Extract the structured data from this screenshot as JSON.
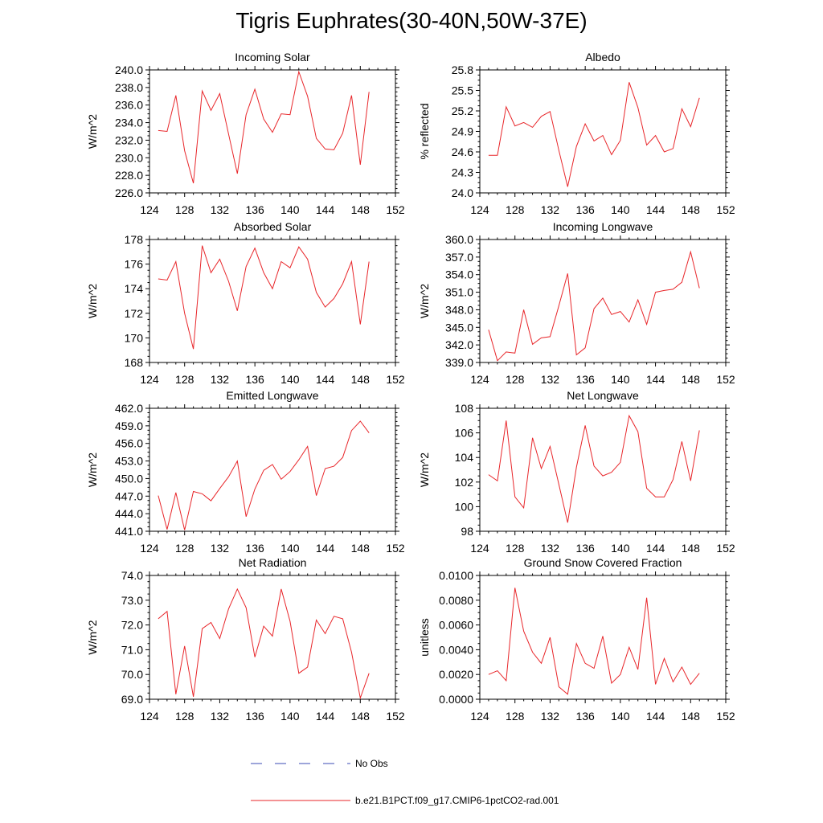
{
  "figure_title": "Tigris Euphrates(30-40N,50W-37E)",
  "legend": {
    "obs_label": "No Obs",
    "obs_color": "#3b4bb5",
    "model_label": "b.e21.B1PCT.f09_g17.CMIP6-1pctCO2-rad.001",
    "model_color": "#e8262a"
  },
  "chart_data": [
    {
      "type": "line",
      "title": "Incoming Solar",
      "ylabel": "W/m^2",
      "xlim": [
        124,
        152
      ],
      "ylim": [
        226.0,
        240.0
      ],
      "xticks": [
        "124",
        "128",
        "132",
        "136",
        "140",
        "144",
        "148",
        "152"
      ],
      "yticks": [
        "226.0",
        "228.0",
        "230.0",
        "232.0",
        "234.0",
        "236.0",
        "238.0",
        "240.0"
      ],
      "x": [
        125,
        126,
        127,
        128,
        129,
        130,
        131,
        132,
        133,
        134,
        135,
        136,
        137,
        138,
        139,
        140,
        141,
        142,
        143,
        144,
        145,
        146,
        147,
        148,
        149
      ],
      "series": [
        {
          "name": "b.e21.B1PCT.f09_g17.CMIP6-1pctCO2-rad.001",
          "values": [
            233.1,
            233.0,
            237.1,
            230.8,
            227.1,
            237.6,
            235.4,
            237.3,
            232.7,
            228.2,
            234.9,
            237.8,
            234.4,
            232.9,
            235.0,
            234.9,
            239.8,
            237.0,
            232.2,
            231.0,
            230.9,
            232.8,
            237.1,
            229.2,
            237.5
          ]
        }
      ]
    },
    {
      "type": "line",
      "title": "Albedo",
      "ylabel": "% reflected",
      "xlim": [
        124,
        152
      ],
      "ylim": [
        24.0,
        25.8
      ],
      "xticks": [
        "124",
        "128",
        "132",
        "136",
        "140",
        "144",
        "148",
        "152"
      ],
      "yticks": [
        "24.0",
        "24.3",
        "24.6",
        "24.9",
        "25.2",
        "25.5",
        "25.8"
      ],
      "x": [
        125,
        126,
        127,
        128,
        129,
        130,
        131,
        132,
        133,
        134,
        135,
        136,
        137,
        138,
        139,
        140,
        141,
        142,
        143,
        144,
        145,
        146,
        147,
        148,
        149
      ],
      "series": [
        {
          "name": "b.e21.B1PCT.f09_g17.CMIP6-1pctCO2-rad.001",
          "values": [
            24.55,
            24.55,
            25.26,
            24.98,
            25.03,
            24.96,
            25.12,
            25.19,
            24.62,
            24.09,
            24.68,
            25.01,
            24.76,
            24.84,
            24.56,
            24.77,
            25.62,
            25.25,
            24.7,
            24.84,
            24.6,
            24.65,
            25.23,
            24.97,
            25.39
          ]
        }
      ]
    },
    {
      "type": "line",
      "title": "Absorbed Solar",
      "ylabel": "W/m^2",
      "xlim": [
        124,
        152
      ],
      "ylim": [
        168,
        178
      ],
      "xticks": [
        "124",
        "128",
        "132",
        "136",
        "140",
        "144",
        "148",
        "152"
      ],
      "yticks": [
        "168",
        "170",
        "172",
        "174",
        "176",
        "178"
      ],
      "x": [
        125,
        126,
        127,
        128,
        129,
        130,
        131,
        132,
        133,
        134,
        135,
        136,
        137,
        138,
        139,
        140,
        141,
        142,
        143,
        144,
        145,
        146,
        147,
        148,
        149
      ],
      "series": [
        {
          "name": "b.e21.B1PCT.f09_g17.CMIP6-1pctCO2-rad.001",
          "values": [
            174.8,
            174.7,
            176.2,
            172.0,
            169.1,
            177.5,
            175.3,
            176.4,
            174.6,
            172.2,
            175.8,
            177.3,
            175.3,
            174.0,
            176.2,
            175.7,
            177.4,
            176.4,
            173.7,
            172.5,
            173.2,
            174.4,
            176.2,
            171.1,
            176.2
          ]
        }
      ]
    },
    {
      "type": "line",
      "title": "Incoming Longwave",
      "ylabel": "W/m^2",
      "xlim": [
        124,
        152
      ],
      "ylim": [
        339.0,
        360.0
      ],
      "xticks": [
        "124",
        "128",
        "132",
        "136",
        "140",
        "144",
        "148",
        "152"
      ],
      "yticks": [
        "339.0",
        "342.0",
        "345.0",
        "348.0",
        "351.0",
        "354.0",
        "357.0",
        "360.0"
      ],
      "x": [
        125,
        126,
        127,
        128,
        129,
        130,
        131,
        132,
        133,
        134,
        135,
        136,
        137,
        138,
        139,
        140,
        141,
        142,
        143,
        144,
        145,
        146,
        147,
        148,
        149
      ],
      "series": [
        {
          "name": "b.e21.B1PCT.f09_g17.CMIP6-1pctCO2-rad.001",
          "values": [
            344.6,
            339.3,
            340.8,
            340.6,
            348.0,
            342.1,
            343.2,
            343.4,
            348.7,
            354.2,
            340.3,
            341.5,
            348.2,
            350.0,
            347.2,
            347.7,
            345.9,
            349.7,
            345.5,
            351.0,
            351.3,
            351.5,
            352.7,
            357.9,
            351.7
          ]
        }
      ]
    },
    {
      "type": "line",
      "title": "Emitted Longwave",
      "ylabel": "W/m^2",
      "xlim": [
        124,
        152
      ],
      "ylim": [
        441.0,
        462.0
      ],
      "xticks": [
        "124",
        "128",
        "132",
        "136",
        "140",
        "144",
        "148",
        "152"
      ],
      "yticks": [
        "441.0",
        "444.0",
        "447.0",
        "450.0",
        "453.0",
        "456.0",
        "459.0",
        "462.0"
      ],
      "x": [
        125,
        126,
        127,
        128,
        129,
        130,
        131,
        132,
        133,
        134,
        135,
        136,
        137,
        138,
        139,
        140,
        141,
        142,
        143,
        144,
        145,
        146,
        147,
        148,
        149
      ],
      "series": [
        {
          "name": "b.e21.B1PCT.f09_g17.CMIP6-1pctCO2-rad.001",
          "values": [
            447.1,
            441.3,
            447.6,
            441.2,
            447.8,
            447.4,
            446.2,
            448.3,
            450.3,
            453.0,
            443.5,
            448.2,
            451.4,
            452.4,
            449.9,
            451.2,
            453.2,
            455.5,
            447.1,
            451.7,
            452.1,
            453.6,
            458.2,
            459.8,
            457.8
          ]
        }
      ]
    },
    {
      "type": "line",
      "title": "Net Longwave",
      "ylabel": "W/m^2",
      "xlim": [
        124,
        152
      ],
      "ylim": [
        98,
        108
      ],
      "xticks": [
        "124",
        "128",
        "132",
        "136",
        "140",
        "144",
        "148",
        "152"
      ],
      "yticks": [
        "98",
        "100",
        "102",
        "104",
        "106",
        "108"
      ],
      "x": [
        125,
        126,
        127,
        128,
        129,
        130,
        131,
        132,
        133,
        134,
        135,
        136,
        137,
        138,
        139,
        140,
        141,
        142,
        143,
        144,
        145,
        146,
        147,
        148,
        149
      ],
      "series": [
        {
          "name": "b.e21.B1PCT.f09_g17.CMIP6-1pctCO2-rad.001",
          "values": [
            102.6,
            102.1,
            107.0,
            100.8,
            99.9,
            105.6,
            103.1,
            104.9,
            101.8,
            98.7,
            103.2,
            106.6,
            103.3,
            102.5,
            102.8,
            103.6,
            107.4,
            106.1,
            101.5,
            100.8,
            100.8,
            102.2,
            105.3,
            102.1,
            106.2
          ]
        }
      ]
    },
    {
      "type": "line",
      "title": "Net Radiation",
      "ylabel": "W/m^2",
      "xlim": [
        124,
        152
      ],
      "ylim": [
        69.0,
        74.0
      ],
      "xticks": [
        "124",
        "128",
        "132",
        "136",
        "140",
        "144",
        "148",
        "152"
      ],
      "yticks": [
        "69.0",
        "70.0",
        "71.0",
        "72.0",
        "73.0",
        "74.0"
      ],
      "x": [
        125,
        126,
        127,
        128,
        129,
        130,
        131,
        132,
        133,
        134,
        135,
        136,
        137,
        138,
        139,
        140,
        141,
        142,
        143,
        144,
        145,
        146,
        147,
        148,
        149
      ],
      "series": [
        {
          "name": "b.e21.B1PCT.f09_g17.CMIP6-1pctCO2-rad.001",
          "values": [
            72.25,
            72.55,
            69.2,
            71.15,
            69.1,
            71.85,
            72.1,
            71.45,
            72.65,
            73.45,
            72.7,
            70.7,
            71.95,
            71.55,
            73.45,
            72.15,
            70.05,
            70.3,
            72.2,
            71.65,
            72.35,
            72.25,
            70.9,
            69.05,
            70.05
          ]
        }
      ]
    },
    {
      "type": "line",
      "title": "Ground Snow Covered Fraction",
      "ylabel": "unitless",
      "xlim": [
        124,
        152
      ],
      "ylim": [
        0.0,
        0.01
      ],
      "xticks": [
        "124",
        "128",
        "132",
        "136",
        "140",
        "144",
        "148",
        "152"
      ],
      "yticks": [
        "0.0000",
        "0.0020",
        "0.0040",
        "0.0060",
        "0.0080",
        "0.0100"
      ],
      "x": [
        125,
        126,
        127,
        128,
        129,
        130,
        131,
        132,
        133,
        134,
        135,
        136,
        137,
        138,
        139,
        140,
        141,
        142,
        143,
        144,
        145,
        146,
        147,
        148,
        149
      ],
      "series": [
        {
          "name": "b.e21.B1PCT.f09_g17.CMIP6-1pctCO2-rad.001",
          "values": [
            0.002,
            0.0023,
            0.0015,
            0.009,
            0.0055,
            0.0038,
            0.0029,
            0.005,
            0.001,
            0.0004,
            0.0045,
            0.0029,
            0.0025,
            0.0051,
            0.0013,
            0.002,
            0.0042,
            0.0024,
            0.0082,
            0.0012,
            0.0033,
            0.0014,
            0.0026,
            0.0012,
            0.0021
          ]
        }
      ]
    }
  ]
}
